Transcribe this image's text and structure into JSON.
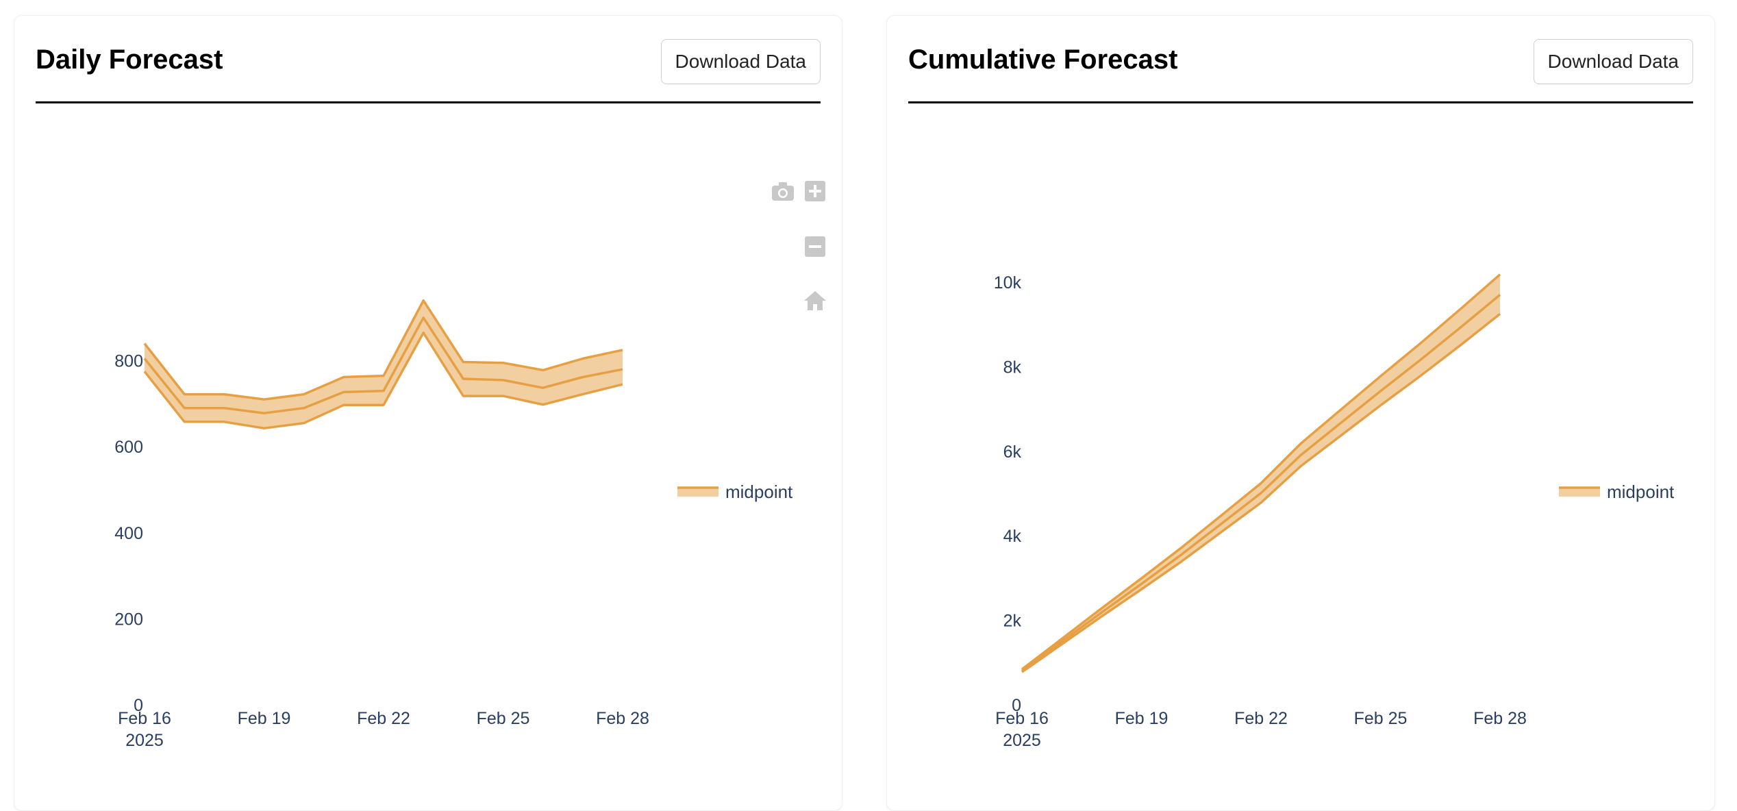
{
  "colors": {
    "line": "#e6a043",
    "band": "#f2cfa0",
    "axis_text": "#2a3f5f",
    "modebar": "#c8c8c8"
  },
  "panels": [
    {
      "title": "Daily Forecast",
      "download_label": "Download Data"
    },
    {
      "title": "Cumulative Forecast",
      "download_label": "Download Data"
    }
  ],
  "modebar": [
    "camera-icon",
    "zoom-in-icon",
    "zoom-out-icon",
    "home-icon"
  ],
  "chart_data": [
    {
      "type": "line",
      "title": "",
      "xlabel": "",
      "ylabel": "",
      "x_ticks": [
        [
          "Feb 16",
          "2025"
        ],
        [
          "Feb 19"
        ],
        [
          "Feb 22"
        ],
        [
          "Feb 25"
        ],
        [
          "Feb 28"
        ]
      ],
      "y_ticks": [
        "0",
        "200",
        "400",
        "600",
        "800"
      ],
      "ylim": [
        0,
        1000
      ],
      "x": [
        "2025-02-16",
        "2025-02-17",
        "2025-02-18",
        "2025-02-19",
        "2025-02-20",
        "2025-02-21",
        "2025-02-22",
        "2025-02-23",
        "2025-02-24",
        "2025-02-25",
        "2025-02-26",
        "2025-02-27",
        "2025-02-28"
      ],
      "series": [
        {
          "name": "midpoint",
          "values": [
            805,
            690,
            690,
            678,
            690,
            727,
            730,
            900,
            758,
            755,
            737,
            762,
            780
          ]
        },
        {
          "values": [
            840,
            722,
            722,
            710,
            722,
            762,
            765,
            940,
            797,
            795,
            778,
            805,
            825
          ]
        },
        {
          "values": [
            775,
            658,
            658,
            643,
            655,
            697,
            697,
            865,
            718,
            718,
            698,
            722,
            745
          ]
        }
      ],
      "legend": "right"
    },
    {
      "type": "line",
      "title": "",
      "xlabel": "",
      "ylabel": "",
      "x_ticks": [
        [
          "Feb 16",
          "2025"
        ],
        [
          "Feb 19"
        ],
        [
          "Feb 22"
        ],
        [
          "Feb 25"
        ],
        [
          "Feb 28"
        ]
      ],
      "y_ticks": [
        "0",
        "2k",
        "4k",
        "6k",
        "8k",
        "10k"
      ],
      "ylim": [
        0,
        10000
      ],
      "x": [
        "2025-02-16",
        "2025-02-17",
        "2025-02-18",
        "2025-02-19",
        "2025-02-20",
        "2025-02-21",
        "2025-02-22",
        "2025-02-23",
        "2025-02-24",
        "2025-02-25",
        "2025-02-26",
        "2025-02-27",
        "2025-02-28"
      ],
      "series": [
        {
          "name": "midpoint",
          "values": [
            805,
            1495,
            2185,
            2863,
            3553,
            4280,
            5010,
            5910,
            6668,
            7423,
            8160,
            8922,
            9702
          ]
        },
        {
          "values": [
            840,
            1562,
            2284,
            2994,
            3716,
            4478,
            5243,
            6183,
            6980,
            7775,
            8553,
            9358,
            10183
          ]
        },
        {
          "values": [
            775,
            1433,
            2091,
            2734,
            3389,
            4086,
            4783,
            5648,
            6366,
            7084,
            7782,
            8504,
            9249
          ]
        }
      ],
      "legend": "right"
    }
  ]
}
